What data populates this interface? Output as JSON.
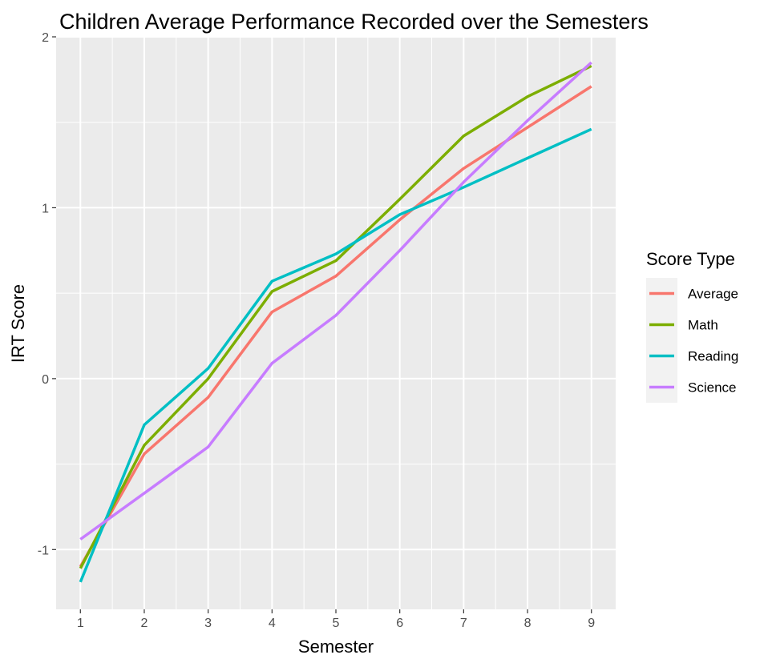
{
  "chart_data": {
    "type": "line",
    "title": "Children Average Performance Recorded over the Semesters",
    "xlabel": "Semester",
    "ylabel": "IRT Score",
    "x": [
      1,
      2,
      3,
      4,
      5,
      6,
      7,
      8,
      9
    ],
    "xlim": [
      0.62,
      9.38
    ],
    "ylim": [
      -1.35,
      2.0
    ],
    "x_ticks": [
      1,
      2,
      3,
      4,
      5,
      6,
      7,
      8,
      9
    ],
    "y_ticks": [
      -1,
      0,
      1,
      2
    ],
    "grid": true,
    "legend": {
      "title": "Score Type",
      "position": "right"
    },
    "series": [
      {
        "name": "Average",
        "color": "#F8766D",
        "values": [
          -1.1,
          -0.44,
          -0.11,
          0.39,
          0.6,
          0.93,
          1.23,
          1.47,
          1.71
        ]
      },
      {
        "name": "Math",
        "color": "#7CAE00",
        "values": [
          -1.11,
          -0.39,
          0.0,
          0.51,
          0.69,
          1.05,
          1.42,
          1.65,
          1.83
        ]
      },
      {
        "name": "Reading",
        "color": "#00BFC4",
        "values": [
          -1.19,
          -0.27,
          0.06,
          0.57,
          0.73,
          0.96,
          1.12,
          1.29,
          1.46
        ]
      },
      {
        "name": "Science",
        "color": "#C77CFF",
        "values": [
          -0.94,
          -0.67,
          -0.4,
          0.09,
          0.37,
          0.75,
          1.15,
          1.51,
          1.85
        ]
      }
    ]
  }
}
